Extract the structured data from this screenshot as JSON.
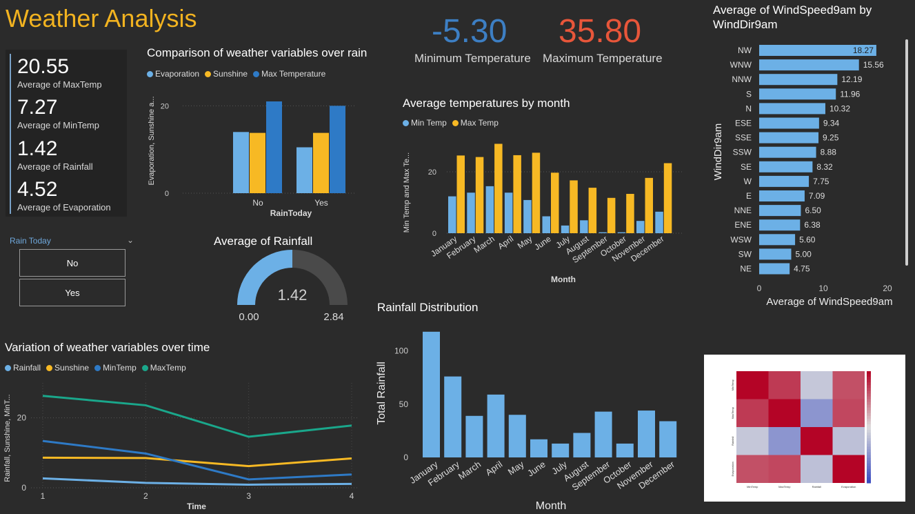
{
  "title": "Weather Analysis",
  "kpis": [
    {
      "value": "20.55",
      "label": "Average of MaxTemp"
    },
    {
      "value": "7.27",
      "label": "Average of MinTemp"
    },
    {
      "value": "1.42",
      "label": "Average of Rainfall"
    },
    {
      "value": "4.52",
      "label": "Average of Evaporation"
    }
  ],
  "temps": {
    "min_value": "-5.30",
    "min_label": "Minimum Temperature",
    "max_value": "35.80",
    "max_label": "Maximum Temperature"
  },
  "slicer": {
    "title": "Rain Today",
    "options": [
      "No",
      "Yes"
    ]
  },
  "gauge": {
    "title": "Average of Rainfall",
    "value_text": "1.42",
    "min_text": "0.00",
    "max_text": "2.84",
    "value": 1.42,
    "min": 0,
    "max": 2.84
  },
  "colors": {
    "light_blue": "#6cb0e6",
    "yellow": "#f7b924",
    "blue": "#2e7ac6",
    "green": "#1aa78b",
    "min_temp": "#3d7fc4",
    "max_temp": "#e8563a"
  },
  "chart_data": [
    {
      "id": "rain-compare",
      "type": "bar",
      "title": "Comparison of weather variables over rain",
      "xlabel": "RainToday",
      "ylabel": "Evaporation, Sunshine a...",
      "categories": [
        "No",
        "Yes"
      ],
      "series": [
        {
          "name": "Evaporation",
          "values": [
            14,
            10.5
          ],
          "color": "#6cb0e6"
        },
        {
          "name": "Sunshine",
          "values": [
            13.8,
            13.8
          ],
          "color": "#f7b924"
        },
        {
          "name": "Max Temperature",
          "values": [
            21,
            20
          ],
          "color": "#2e7ac6"
        }
      ],
      "ylim": [
        0,
        24
      ],
      "yticks": [
        0,
        20
      ]
    },
    {
      "id": "monthly-temps",
      "type": "bar",
      "title": "Average temperatures by month",
      "xlabel": "Month",
      "ylabel": "Min Temp and Max Te...",
      "categories": [
        "January",
        "February",
        "March",
        "April",
        "May",
        "June",
        "July",
        "August",
        "September",
        "October",
        "November",
        "December"
      ],
      "series": [
        {
          "name": "Min Temp",
          "values": [
            12,
            13.2,
            15.3,
            13.2,
            10.8,
            5.5,
            2.5,
            4.2,
            0.3,
            0.3,
            4,
            7
          ],
          "color": "#6cb0e6"
        },
        {
          "name": "Max Temp",
          "values": [
            25.3,
            24.8,
            29.1,
            25.4,
            26.2,
            19.7,
            17.2,
            14.8,
            11.5,
            12.8,
            18,
            22.8
          ],
          "color": "#f7b924"
        }
      ],
      "ylim": [
        0,
        31
      ],
      "yticks": [
        0,
        20
      ]
    },
    {
      "id": "wind",
      "type": "bar",
      "orientation": "horizontal",
      "title": "Average of WindSpeed9am by WindDir9am",
      "xlabel": "Average of WindSpeed9am",
      "ylabel": "WindDir9am",
      "categories": [
        "NW",
        "WNW",
        "NNW",
        "S",
        "N",
        "ESE",
        "SSE",
        "SSW",
        "SE",
        "W",
        "E",
        "NNE",
        "ENE",
        "WSW",
        "SW",
        "NE"
      ],
      "values": [
        18.27,
        15.56,
        12.19,
        11.96,
        10.32,
        9.34,
        9.25,
        8.88,
        8.32,
        7.75,
        7.09,
        6.5,
        6.38,
        5.6,
        5.0,
        4.75
      ],
      "labels": [
        "18.27",
        "15.56",
        "12.19",
        "11.96",
        "10.32",
        "9.34",
        "9.25",
        "8.88",
        "8.32",
        "7.75",
        "7.09",
        "6.50",
        "6.38",
        "5.60",
        "5.00",
        "4.75"
      ],
      "xlim": [
        0,
        20
      ],
      "xticks": [
        0,
        10,
        20
      ],
      "color": "#6cb0e6"
    },
    {
      "id": "over-time",
      "type": "line",
      "title": "Variation of weather variables over time",
      "xlabel": "Time",
      "ylabel": "Rainfall, Sunshine, MinT...",
      "x": [
        1,
        2,
        3,
        4
      ],
      "series": [
        {
          "name": "Rainfall",
          "values": [
            2.7,
            1.4,
            0.9,
            1.1
          ],
          "color": "#6cb0e6"
        },
        {
          "name": "Sunshine",
          "values": [
            8.6,
            8.5,
            6.2,
            8.4
          ],
          "color": "#f7b924"
        },
        {
          "name": "MinTemp",
          "values": [
            13.4,
            9.8,
            2.4,
            3.8
          ],
          "color": "#2e7ac6"
        },
        {
          "name": "MaxTemp",
          "values": [
            26.3,
            23.6,
            14.6,
            17.8
          ],
          "color": "#1aa78b"
        }
      ],
      "ylim": [
        0,
        30
      ],
      "yticks": [
        0,
        20
      ]
    },
    {
      "id": "rainfall-dist",
      "type": "bar",
      "title": "Rainfall Distribution",
      "xlabel": "Month",
      "ylabel": "Total Rainfall",
      "categories": [
        "January",
        "February",
        "March",
        "April",
        "May",
        "June",
        "July",
        "August",
        "September",
        "October",
        "November",
        "December"
      ],
      "values": [
        118,
        76,
        39,
        59,
        40,
        17,
        13,
        23,
        43,
        13,
        44,
        34
      ],
      "ylim": [
        0,
        125
      ],
      "yticks": [
        0,
        50,
        100
      ],
      "color": "#6cb0e6"
    },
    {
      "id": "heatmap",
      "type": "heatmap",
      "rows": [
        "MinTemp",
        "MaxTemp",
        "Rainfall",
        "Evaporation"
      ],
      "columns": [
        "MinTemp",
        "MaxTemp",
        "Rainfall",
        "Evaporation"
      ],
      "values": [
        [
          1.0,
          0.75,
          -0.15,
          0.65
        ],
        [
          0.75,
          1.0,
          -0.5,
          0.69
        ],
        [
          -0.15,
          -0.5,
          1.0,
          -0.2
        ],
        [
          0.65,
          0.69,
          -0.2,
          1.0
        ]
      ],
      "colorbar": [
        -1,
        1
      ]
    }
  ]
}
